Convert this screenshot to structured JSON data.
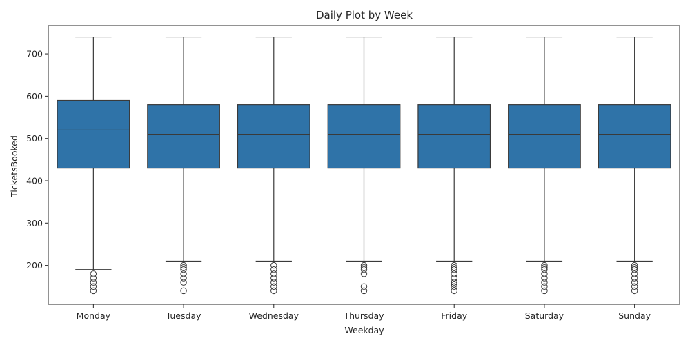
{
  "chart_data": {
    "type": "box",
    "title": "Daily Plot by Week",
    "xlabel": "Weekday",
    "ylabel": "TicketsBooked",
    "ylim": [
      108,
      767
    ],
    "yticks": [
      200,
      300,
      400,
      500,
      600,
      700
    ],
    "grid": false,
    "color": "#2f73a8",
    "line_color": "#3a3a3a",
    "categories": [
      "Monday",
      "Tuesday",
      "Wednesday",
      "Thursday",
      "Friday",
      "Saturday",
      "Sunday"
    ],
    "boxes": [
      {
        "category": "Monday",
        "whisker_low": 190,
        "q1": 430,
        "median": 520,
        "q3": 590,
        "whisker_high": 740,
        "outliers": [
          180,
          170,
          160,
          150,
          140
        ]
      },
      {
        "category": "Tuesday",
        "whisker_low": 210,
        "q1": 430,
        "median": 510,
        "q3": 580,
        "whisker_high": 740,
        "outliers": [
          200,
          195,
          190,
          180,
          170,
          160,
          140
        ]
      },
      {
        "category": "Wednesday",
        "whisker_low": 210,
        "q1": 430,
        "median": 510,
        "q3": 580,
        "whisker_high": 740,
        "outliers": [
          200,
          190,
          180,
          170,
          160,
          150,
          140
        ]
      },
      {
        "category": "Thursday",
        "whisker_low": 210,
        "q1": 430,
        "median": 510,
        "q3": 580,
        "whisker_high": 740,
        "outliers": [
          200,
          195,
          190,
          180,
          150,
          140
        ]
      },
      {
        "category": "Friday",
        "whisker_low": 210,
        "q1": 430,
        "median": 510,
        "q3": 580,
        "whisker_high": 740,
        "outliers": [
          200,
          195,
          190,
          180,
          170,
          160,
          155,
          150,
          140
        ]
      },
      {
        "category": "Saturday",
        "whisker_low": 210,
        "q1": 430,
        "median": 510,
        "q3": 580,
        "whisker_high": 740,
        "outliers": [
          200,
          195,
          190,
          180,
          170,
          160,
          150,
          140
        ]
      },
      {
        "category": "Sunday",
        "whisker_low": 210,
        "q1": 430,
        "median": 510,
        "q3": 580,
        "whisker_high": 740,
        "outliers": [
          200,
          195,
          190,
          180,
          170,
          160,
          150,
          140
        ]
      }
    ]
  }
}
